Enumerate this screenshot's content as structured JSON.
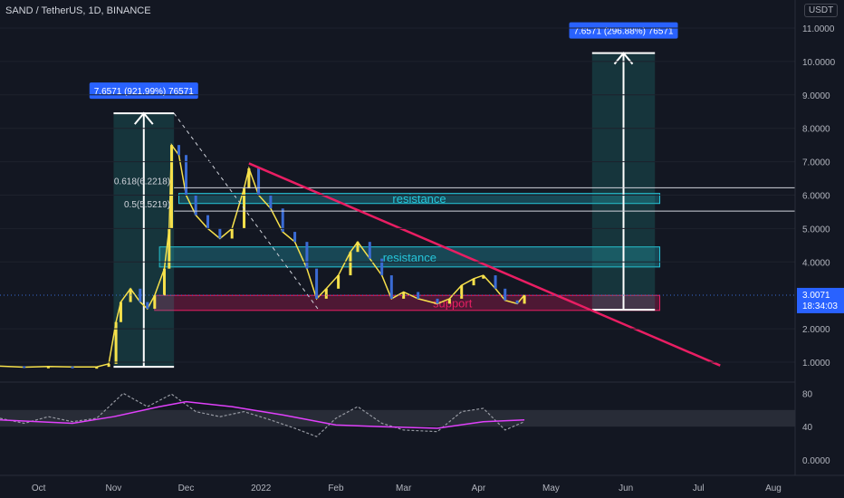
{
  "header": {
    "title": "SAND / TetherUS, 1D, BINANCE",
    "currency": "USDT"
  },
  "colors": {
    "background": "#131722",
    "up": "#f7e14b",
    "down": "#3a6bd4",
    "price_axis_text": "#b2b5be",
    "trendline": "#e91e63",
    "resistance": "#26c6da",
    "support": "#e91e63",
    "rsi_line": "#9598a1",
    "rsi_ma": "#e040fb"
  },
  "chart_data": {
    "type": "line",
    "title": "SAND / TetherUS, 1D, BINANCE",
    "price_axis": {
      "ticks": [
        "11.0000",
        "10.0000",
        "9.0000",
        "8.0000",
        "7.0000",
        "6.0000",
        "5.0000",
        "4.0000",
        "2.0000",
        "1.0000"
      ],
      "ylim": [
        0.6,
        11.4
      ]
    },
    "rsi_axis": {
      "ticks": [
        "80",
        "40",
        "0.0000"
      ],
      "ylim": [
        0,
        100
      ]
    },
    "x_ticks": [
      "Oct",
      "Nov",
      "Dec",
      "2022",
      "Feb",
      "Mar",
      "Apr",
      "May",
      "Jun",
      "Jul",
      "Aug"
    ],
    "current_price": {
      "label": "3.0071",
      "countdown": "18:34:03",
      "value": 3.0071
    },
    "price_series": [
      {
        "date": "2021-09-15",
        "price": 0.88
      },
      {
        "date": "2021-09-25",
        "price": 0.85
      },
      {
        "date": "2021-10-05",
        "price": 0.87
      },
      {
        "date": "2021-10-15",
        "price": 0.86
      },
      {
        "date": "2021-10-25",
        "price": 0.86
      },
      {
        "date": "2021-10-30",
        "price": 0.95
      },
      {
        "date": "2021-11-02",
        "price": 2.2
      },
      {
        "date": "2021-11-04",
        "price": 2.8
      },
      {
        "date": "2021-11-08",
        "price": 3.2
      },
      {
        "date": "2021-11-12",
        "price": 2.8
      },
      {
        "date": "2021-11-15",
        "price": 2.6
      },
      {
        "date": "2021-11-18",
        "price": 3.0
      },
      {
        "date": "2021-11-22",
        "price": 3.8
      },
      {
        "date": "2021-11-24",
        "price": 5.0
      },
      {
        "date": "2021-11-25",
        "price": 7.5
      },
      {
        "date": "2021-11-28",
        "price": 7.2
      },
      {
        "date": "2021-12-01",
        "price": 6.0
      },
      {
        "date": "2021-12-05",
        "price": 5.4
      },
      {
        "date": "2021-12-10",
        "price": 5.0
      },
      {
        "date": "2021-12-15",
        "price": 4.7
      },
      {
        "date": "2021-12-20",
        "price": 5.0
      },
      {
        "date": "2021-12-25",
        "price": 6.2
      },
      {
        "date": "2021-12-27",
        "price": 6.8
      },
      {
        "date": "2021-12-31",
        "price": 6.0
      },
      {
        "date": "2022-01-05",
        "price": 5.6
      },
      {
        "date": "2022-01-10",
        "price": 4.9
      },
      {
        "date": "2022-01-15",
        "price": 4.6
      },
      {
        "date": "2022-01-20",
        "price": 3.8
      },
      {
        "date": "2022-01-24",
        "price": 2.9
      },
      {
        "date": "2022-01-28",
        "price": 3.2
      },
      {
        "date": "2022-02-02",
        "price": 3.6
      },
      {
        "date": "2022-02-07",
        "price": 4.3
      },
      {
        "date": "2022-02-10",
        "price": 4.6
      },
      {
        "date": "2022-02-15",
        "price": 4.1
      },
      {
        "date": "2022-02-20",
        "price": 3.6
      },
      {
        "date": "2022-02-24",
        "price": 2.9
      },
      {
        "date": "2022-03-01",
        "price": 3.1
      },
      {
        "date": "2022-03-07",
        "price": 2.9
      },
      {
        "date": "2022-03-15",
        "price": 2.75
      },
      {
        "date": "2022-03-20",
        "price": 2.9
      },
      {
        "date": "2022-03-25",
        "price": 3.3
      },
      {
        "date": "2022-03-30",
        "price": 3.5
      },
      {
        "date": "2022-04-03",
        "price": 3.6
      },
      {
        "date": "2022-04-08",
        "price": 3.2
      },
      {
        "date": "2022-04-12",
        "price": 2.85
      },
      {
        "date": "2022-04-17",
        "price": 2.75
      },
      {
        "date": "2022-04-20",
        "price": 3.0071
      }
    ],
    "rsi_series": [
      {
        "date": "2021-09-15",
        "rsi": 50
      },
      {
        "date": "2021-09-25",
        "rsi": 44
      },
      {
        "date": "2021-10-05",
        "rsi": 52
      },
      {
        "date": "2021-10-15",
        "rsi": 46
      },
      {
        "date": "2021-10-25",
        "rsi": 50
      },
      {
        "date": "2021-11-05",
        "rsi": 80
      },
      {
        "date": "2021-11-15",
        "rsi": 64
      },
      {
        "date": "2021-11-25",
        "rsi": 79
      },
      {
        "date": "2021-12-05",
        "rsi": 58
      },
      {
        "date": "2021-12-15",
        "rsi": 52
      },
      {
        "date": "2021-12-25",
        "rsi": 58
      },
      {
        "date": "2022-01-05",
        "rsi": 48
      },
      {
        "date": "2022-01-15",
        "rsi": 38
      },
      {
        "date": "2022-01-24",
        "rsi": 28
      },
      {
        "date": "2022-02-01",
        "rsi": 50
      },
      {
        "date": "2022-02-10",
        "rsi": 64
      },
      {
        "date": "2022-02-20",
        "rsi": 44
      },
      {
        "date": "2022-03-01",
        "rsi": 36
      },
      {
        "date": "2022-03-15",
        "rsi": 34
      },
      {
        "date": "2022-03-25",
        "rsi": 58
      },
      {
        "date": "2022-04-03",
        "rsi": 62
      },
      {
        "date": "2022-04-12",
        "rsi": 36
      },
      {
        "date": "2022-04-20",
        "rsi": 46
      }
    ],
    "rsi_ma_series": [
      {
        "date": "2021-09-15",
        "rsi": 48
      },
      {
        "date": "2021-10-15",
        "rsi": 44
      },
      {
        "date": "2021-11-01",
        "rsi": 52
      },
      {
        "date": "2021-11-20",
        "rsi": 64
      },
      {
        "date": "2021-12-01",
        "rsi": 70
      },
      {
        "date": "2021-12-20",
        "rsi": 64
      },
      {
        "date": "2022-01-10",
        "rsi": 54
      },
      {
        "date": "2022-02-01",
        "rsi": 42
      },
      {
        "date": "2022-02-20",
        "rsi": 40
      },
      {
        "date": "2022-03-15",
        "rsi": 38
      },
      {
        "date": "2022-04-03",
        "rsi": 46
      },
      {
        "date": "2022-04-20",
        "rsi": 48
      }
    ],
    "annotations": {
      "measure_1": {
        "label": "7.6571 (921.99%) 76571",
        "from": {
          "date": "2021-11-01",
          "price": 0.86
        },
        "to": {
          "date": "2021-11-26",
          "price": 8.45
        }
      },
      "measure_2": {
        "label": "7.6571 (296.88%) 76571",
        "from": {
          "date": "2022-05-18",
          "price": 2.57
        },
        "to": {
          "date": "2022-06-13",
          "price": 10.25
        }
      },
      "fib": [
        {
          "label": "0.618(6.2218)",
          "price": 6.2218
        },
        {
          "label": "0.5(5.5219)",
          "price": 5.5219
        }
      ],
      "zones": [
        {
          "label": "resistance",
          "kind": "resistance",
          "start": "2021-11-28",
          "end": "2022-06-15",
          "low": 5.75,
          "high": 6.05
        },
        {
          "label": "resistance",
          "kind": "resistance",
          "start": "2021-11-20",
          "end": "2022-06-15",
          "low": 3.85,
          "high": 4.45
        },
        {
          "label": "support",
          "kind": "support",
          "start": "2021-11-18",
          "end": "2022-06-15",
          "low": 2.55,
          "high": 3.0
        }
      ],
      "trendline": {
        "from": {
          "date": "2021-12-27",
          "price": 6.95
        },
        "to": {
          "date": "2022-07-10",
          "price": 0.9
        }
      },
      "dashed_line": {
        "from": {
          "date": "2021-11-26",
          "price": 8.45
        },
        "to": {
          "date": "2022-01-25",
          "price": 2.55
        }
      }
    }
  }
}
